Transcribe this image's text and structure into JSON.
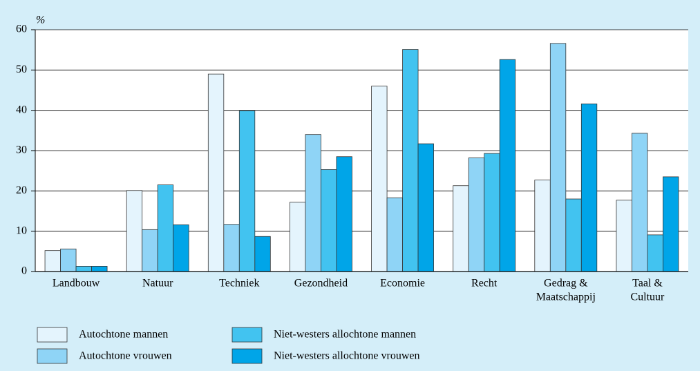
{
  "chart_data": {
    "type": "bar",
    "y_label": "%",
    "categories": [
      [
        "Landbouw"
      ],
      [
        "Natuur"
      ],
      [
        "Techniek"
      ],
      [
        "Gezondheid"
      ],
      [
        "Economie"
      ],
      [
        "Recht"
      ],
      [
        "Gedrag &",
        "Maatschappij"
      ],
      [
        "Taal &",
        "Cultuur"
      ]
    ],
    "series": [
      {
        "name": "Autochtone mannen",
        "color": "#e4f4fd",
        "values": [
          5.2,
          20.1,
          49,
          17.2,
          46,
          21.3,
          22.7,
          17.7
        ]
      },
      {
        "name": "Autochtone vrouwen",
        "color": "#8fd4f6",
        "values": [
          5.6,
          10.4,
          11.7,
          34,
          18.3,
          28.2,
          56.6,
          34.3
        ]
      },
      {
        "name": "Niet-westers allochtone mannen",
        "color": "#42c3f0",
        "values": [
          1.3,
          21.5,
          39.9,
          25.3,
          55.1,
          29.3,
          18,
          9.1
        ]
      },
      {
        "name": "Niet-westers allochtone vrouwen",
        "color": "#00a5e8",
        "values": [
          1.3,
          11.6,
          8.7,
          28.5,
          31.7,
          52.6,
          41.6,
          23.5
        ]
      }
    ],
    "ylim": [
      0,
      60
    ],
    "yticks": [
      0,
      10,
      20,
      30,
      40,
      50,
      60
    ],
    "grid": true
  }
}
